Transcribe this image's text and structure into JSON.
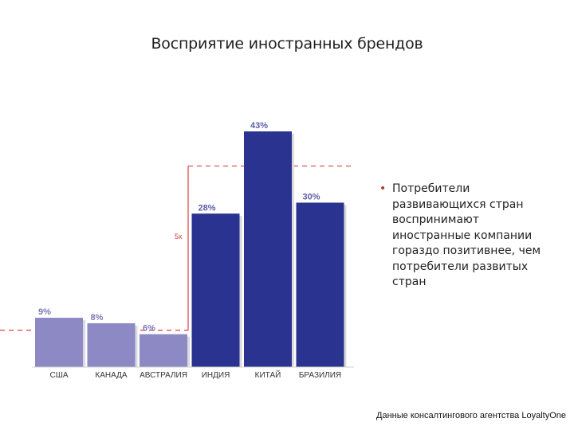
{
  "title": "Восприятие иностранных брендов",
  "chart_data": {
    "type": "bar",
    "title": "Восприятие иностранных брендов",
    "categories": [
      "США",
      "КАНАДА",
      "АВСТРАЛИЯ",
      "ИНДИЯ",
      "КИТАЙ",
      "БРАЗИЛИЯ"
    ],
    "values": [
      9,
      8,
      6,
      28,
      43,
      30
    ],
    "value_labels": [
      "9%",
      "8%",
      "6%",
      "28%",
      "43%",
      "30%"
    ],
    "group_colors": {
      "developed": "#8c89c4",
      "developing": "#2a3490",
      "developed_label": "#7b77b8",
      "developing_label": "#5a5fa8",
      "reference_line": "#d9534f"
    },
    "groups": [
      "developed",
      "developed",
      "developed",
      "developing",
      "developing",
      "developing"
    ],
    "ylim": [
      0,
      45
    ],
    "reference_lines": [
      {
        "value": 6,
        "style": "dashed"
      },
      {
        "value": 30,
        "style": "dashed"
      }
    ],
    "multiplier_label": "5x",
    "grid": false,
    "legend": "none"
  },
  "note": {
    "bullet": "•",
    "text": "Потребители развивающихся стран воспринимают иностранные компании гораздо позитивнее, чем потребители развитых стран"
  },
  "source": "Данные консалтингового агентства LoyaltyOne"
}
